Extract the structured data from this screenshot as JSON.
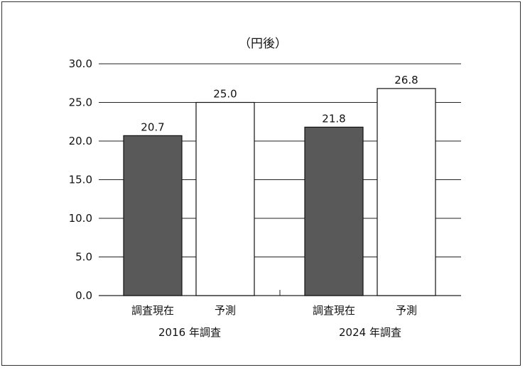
{
  "chart_data": {
    "type": "bar",
    "title": "（円後）",
    "ylim": [
      0,
      30
    ],
    "ytick_step": 5,
    "yticks": [
      "0.0",
      "5.0",
      "10.0",
      "15.0",
      "20.0",
      "25.0",
      "30.0"
    ],
    "grid": true,
    "groups": [
      {
        "label": "2016 年調査",
        "bars": [
          {
            "label": "調査現在",
            "value": 20.7,
            "value_label": "20.7",
            "color": "#595959"
          },
          {
            "label": "予測",
            "value": 25.0,
            "value_label": "25.0",
            "color": "#ffffff"
          }
        ]
      },
      {
        "label": "2024 年調査",
        "bars": [
          {
            "label": "調査現在",
            "value": 21.8,
            "value_label": "21.8",
            "color": "#595959"
          },
          {
            "label": "予測",
            "value": 26.8,
            "value_label": "26.8",
            "color": "#ffffff"
          }
        ]
      }
    ],
    "colors": {
      "axis": "#222222",
      "grid": "#222222",
      "bar_stroke": "#111111"
    }
  }
}
